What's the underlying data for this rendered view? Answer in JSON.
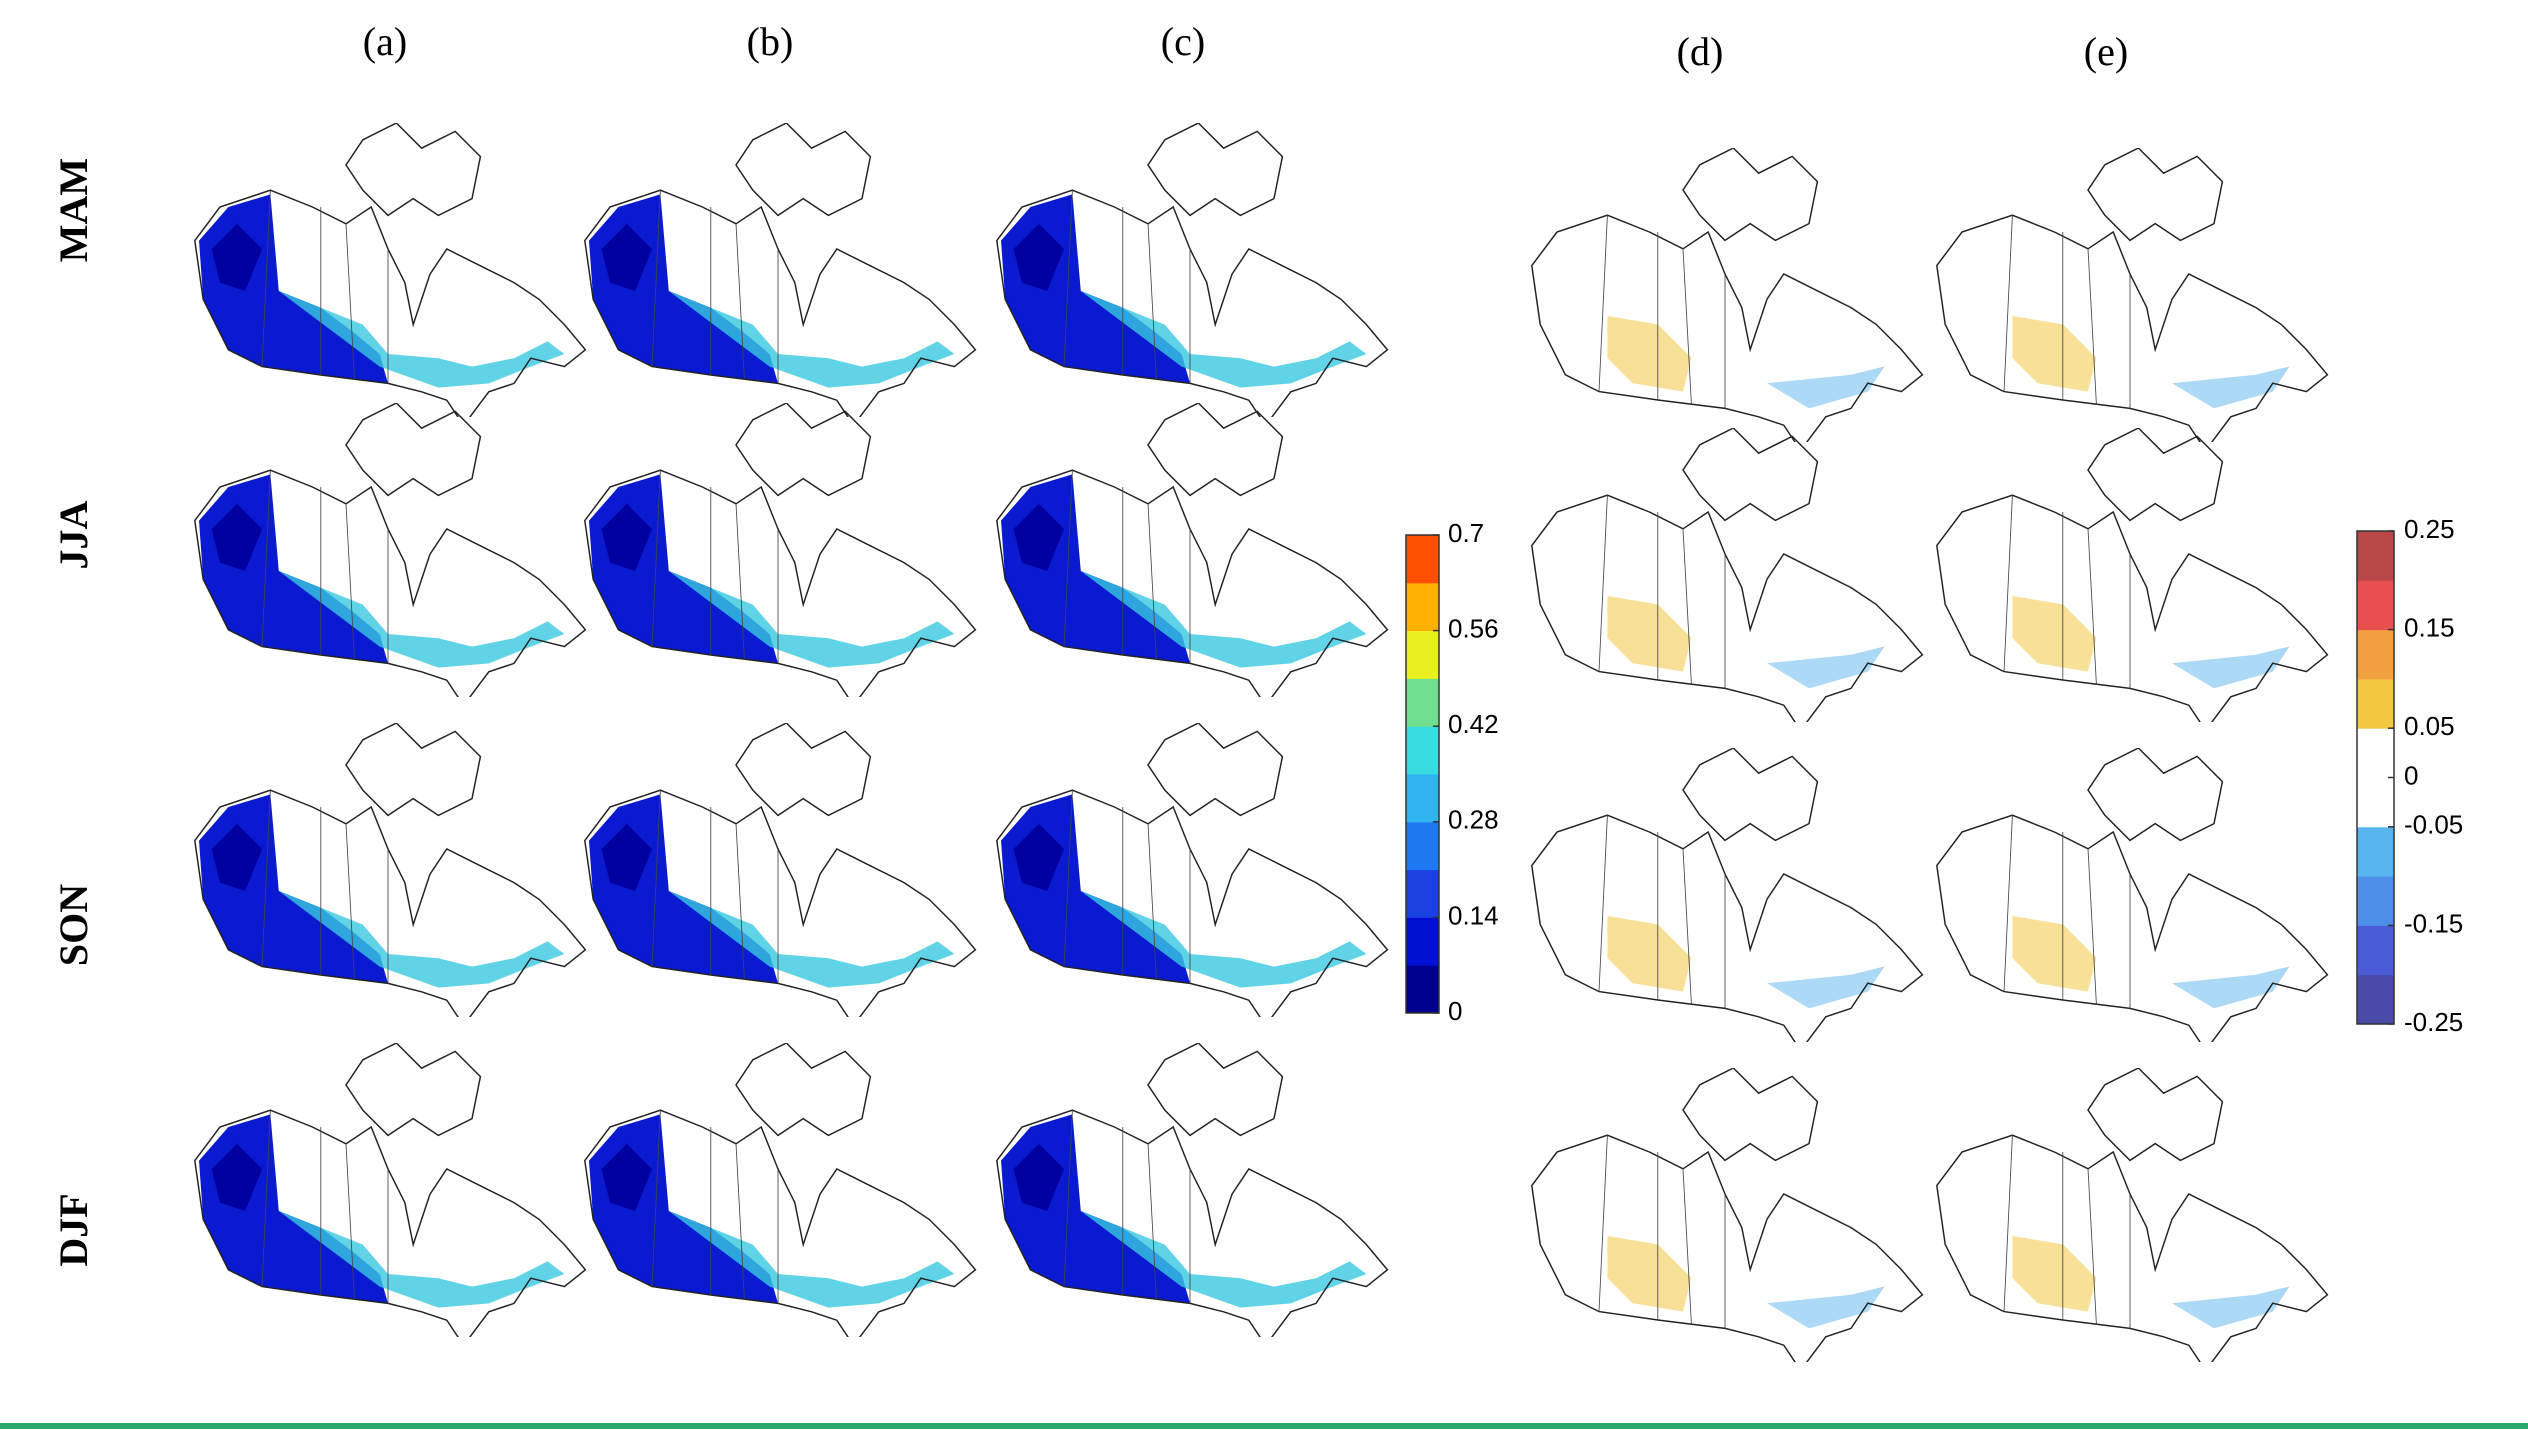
{
  "columns": [
    "(a)",
    "(b)",
    "(c)",
    "(d)",
    "(e)"
  ],
  "rows": [
    "MAM",
    "JJA",
    "SON",
    "DJF"
  ],
  "colorbars": [
    {
      "lim": [
        0,
        0.7
      ],
      "ticks": [
        0,
        0.14,
        0.28,
        0.42,
        0.56,
        0.7
      ],
      "colors": [
        "#00008f",
        "#0010d0",
        "#1a40e0",
        "#1e78f0",
        "#30b4f0",
        "#38dce0",
        "#70e090",
        "#e8f020",
        "#ffb000",
        "#ff5000"
      ]
    },
    {
      "lim": [
        -0.25,
        0.25
      ],
      "ticks": [
        -0.25,
        -0.15,
        -0.05,
        0,
        0.05,
        0.15,
        0.25
      ],
      "colors": [
        "#4a4aa8",
        "#4a5cd6",
        "#4d8fe8",
        "#58b4ee",
        "#ffffff",
        "#ffffff",
        "#f2c840",
        "#f5a040",
        "#e85050",
        "#b84848"
      ]
    }
  ]
}
